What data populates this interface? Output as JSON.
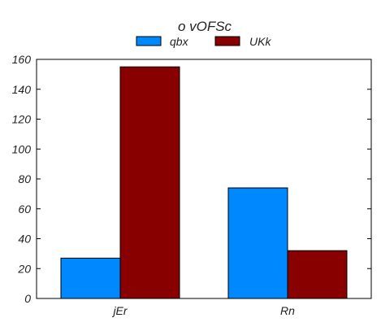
{
  "chart_data": {
    "type": "bar",
    "title": "o vOFSc",
    "xlabel": "",
    "ylabel": "",
    "categories": [
      "jEr",
      "Rn"
    ],
    "series": [
      {
        "name": "qbx",
        "values": [
          27,
          74
        ],
        "color": "#0088ff"
      },
      {
        "name": "UKk",
        "values": [
          155,
          32
        ],
        "color": "#880000"
      }
    ],
    "ylim": [
      0,
      160
    ],
    "yticks": [
      0,
      20,
      40,
      60,
      80,
      100,
      120,
      140,
      160
    ],
    "grid": false,
    "legend_position": "top-center"
  }
}
